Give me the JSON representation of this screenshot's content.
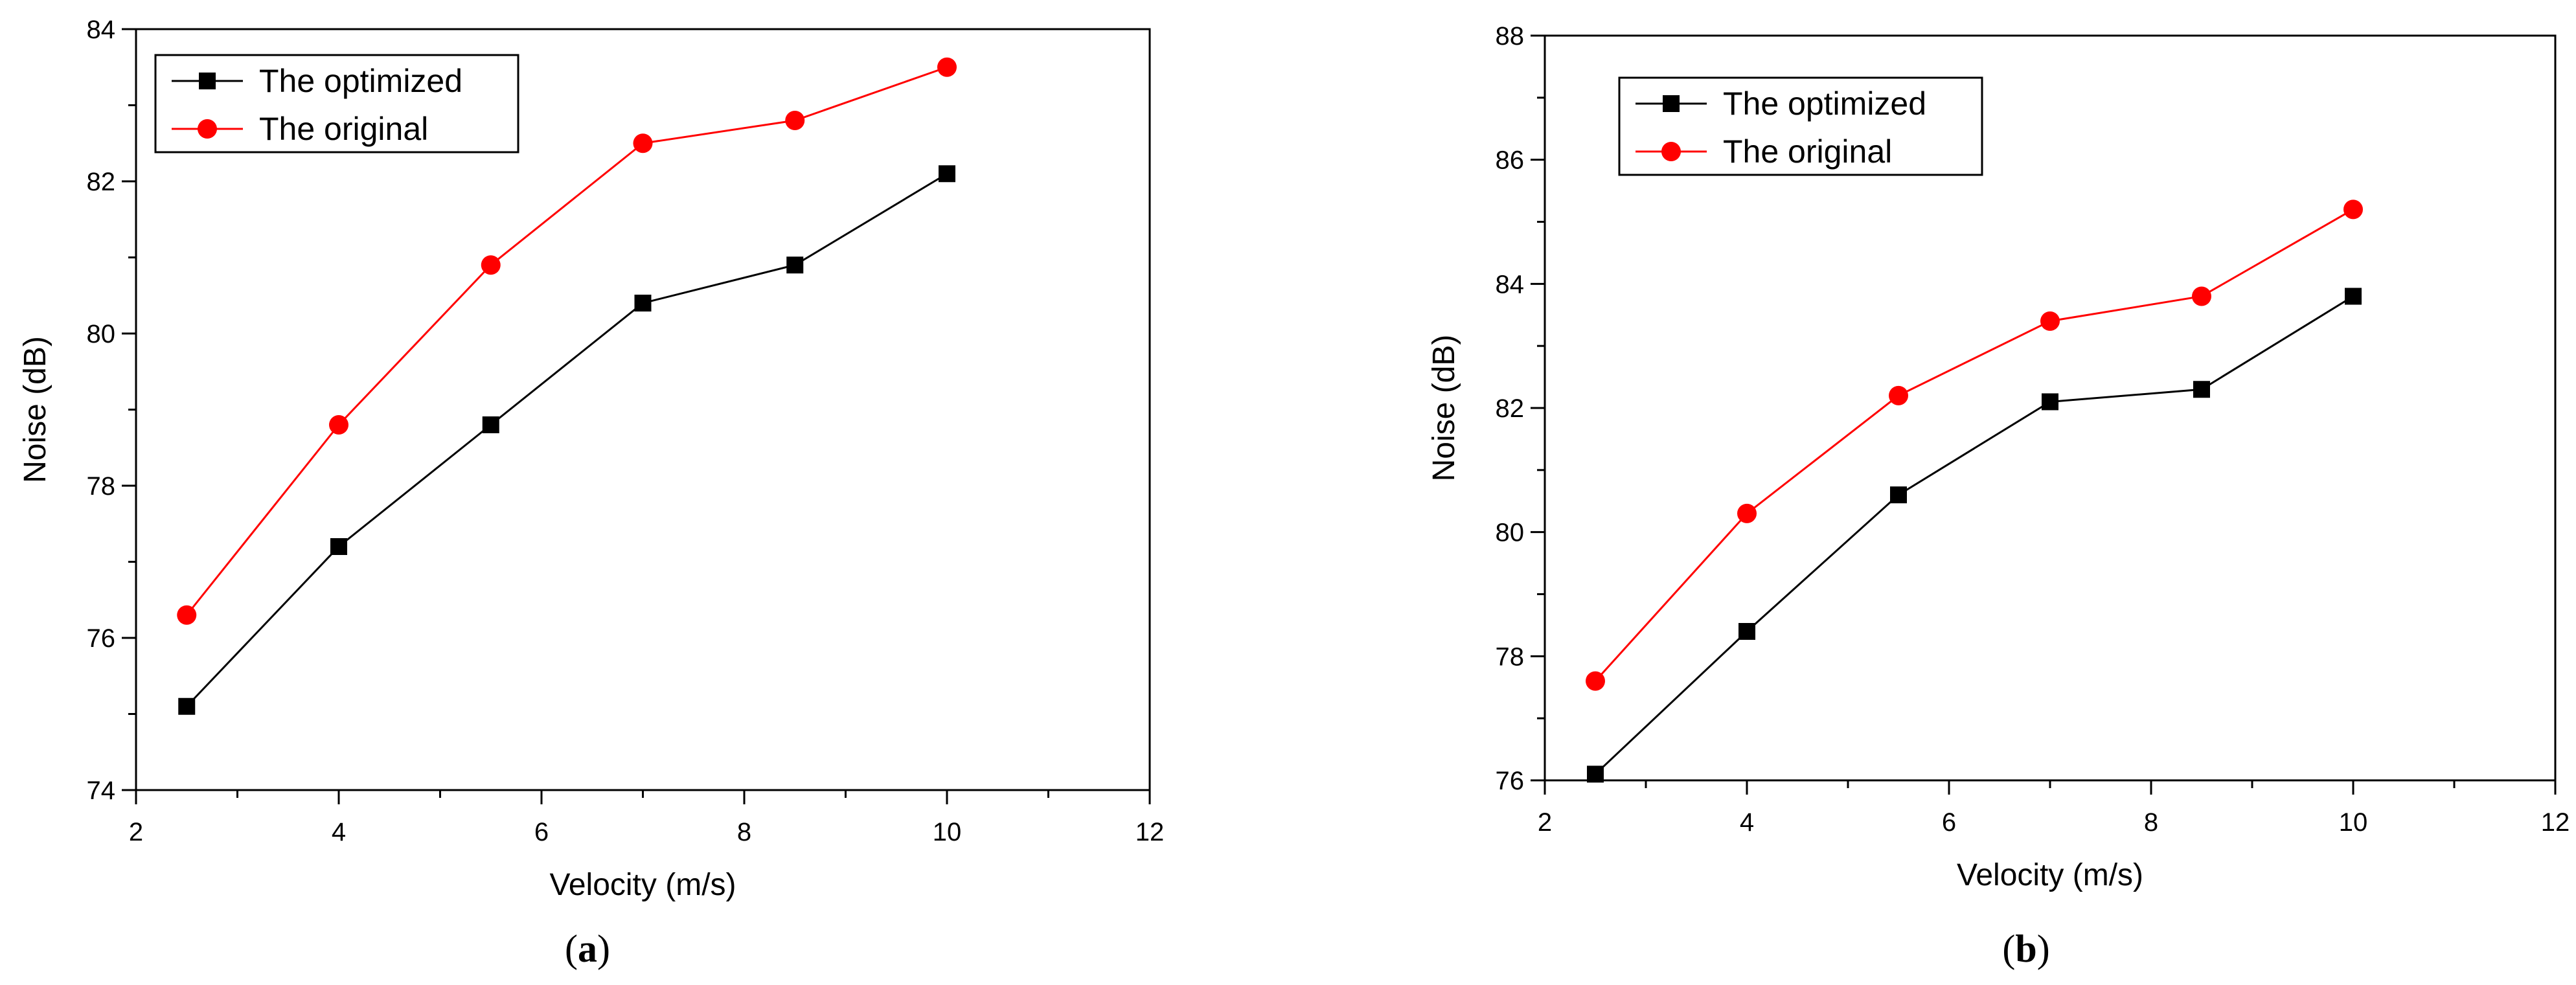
{
  "chart_data": [
    {
      "type": "line",
      "panel_label": "(a)",
      "panel_letter": "a",
      "xlabel": "Velocity (m/s)",
      "ylabel": "Noise (dB)",
      "xlim": [
        2,
        12
      ],
      "ylim": [
        74,
        84
      ],
      "x_major_ticks": [
        2,
        4,
        6,
        8,
        10,
        12
      ],
      "y_major_ticks": [
        74,
        76,
        78,
        80,
        82,
        84
      ],
      "x_tick_labels": [
        "2",
        "4",
        "6",
        "8",
        "10",
        "12"
      ],
      "y_tick_labels": [
        "74",
        "76",
        "78",
        "80",
        "82",
        "84"
      ],
      "legend_position": "top-left",
      "x": [
        2.5,
        4,
        5.5,
        7,
        8.5,
        10
      ],
      "series": [
        {
          "name": "The optimized",
          "marker": "square",
          "color": "#000000",
          "values": [
            75.1,
            77.2,
            78.8,
            80.4,
            80.9,
            82.1
          ]
        },
        {
          "name": "The original",
          "marker": "circle",
          "color": "#ff0000",
          "values": [
            76.3,
            78.8,
            80.9,
            82.5,
            82.8,
            83.5
          ]
        }
      ]
    },
    {
      "type": "line",
      "panel_label": "(b)",
      "panel_letter": "b",
      "xlabel": "Velocity (m/s)",
      "ylabel": "Noise (dB)",
      "xlim": [
        2,
        12
      ],
      "ylim": [
        76,
        88
      ],
      "x_major_ticks": [
        2,
        4,
        6,
        8,
        10,
        12
      ],
      "y_major_ticks": [
        76,
        78,
        80,
        82,
        84,
        86,
        88
      ],
      "x_tick_labels": [
        "2",
        "4",
        "6",
        "8",
        "10",
        "12"
      ],
      "y_tick_labels": [
        "76",
        "78",
        "80",
        "82",
        "84",
        "86",
        "88"
      ],
      "legend_position": "top-left",
      "x": [
        2.5,
        4,
        5.5,
        7,
        8.5,
        10
      ],
      "series": [
        {
          "name": "The optimized",
          "marker": "square",
          "color": "#000000",
          "values": [
            76.1,
            78.4,
            80.6,
            82.1,
            82.3,
            83.8
          ]
        },
        {
          "name": "The original",
          "marker": "circle",
          "color": "#ff0000",
          "values": [
            77.6,
            80.3,
            82.2,
            83.4,
            83.8,
            85.2
          ]
        }
      ]
    }
  ]
}
